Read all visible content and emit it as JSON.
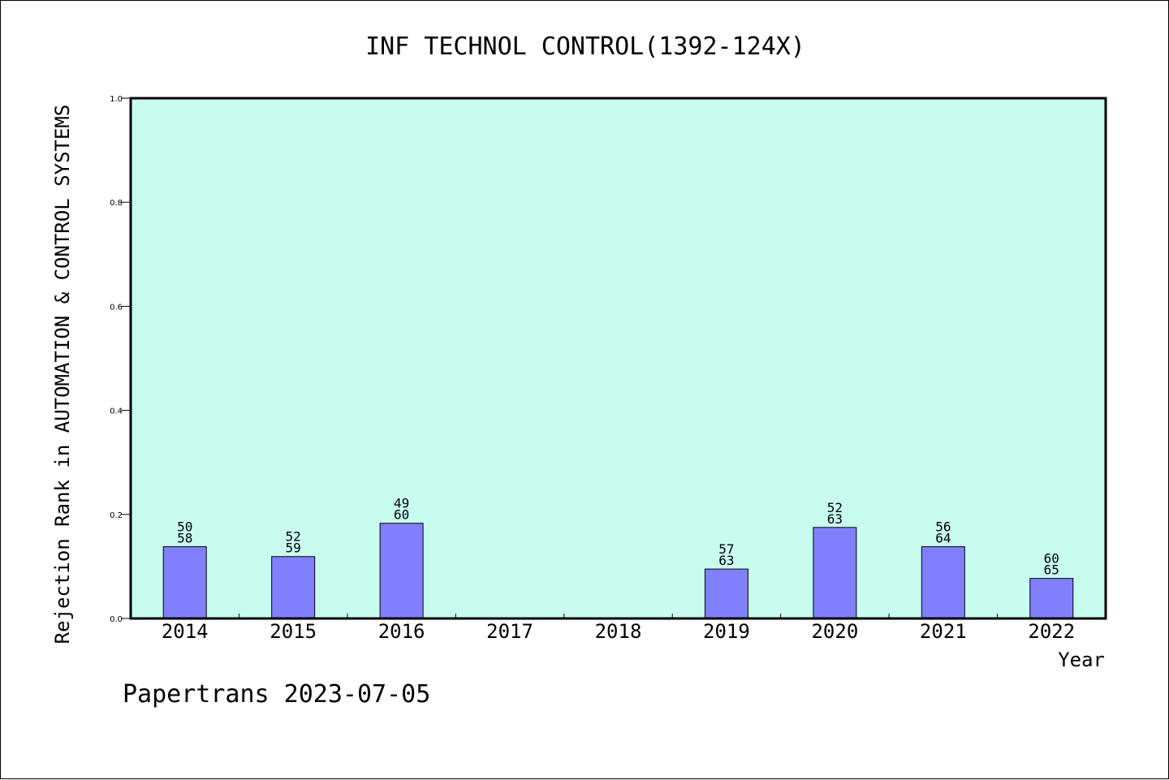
{
  "chart_data": {
    "type": "bar",
    "title": "INF TECHNOL CONTROL(1392-124X)",
    "xlabel": "Year",
    "ylabel": "Rejection Rank in AUTOMATION & CONTROL SYSTEMS",
    "ylim": [
      0,
      1.0
    ],
    "yticks": [
      "0.0",
      "0.2",
      "0.4",
      "0.6",
      "0.8",
      "1.0"
    ],
    "categories": [
      "2014",
      "2015",
      "2016",
      "2017",
      "2018",
      "2019",
      "2020",
      "2021",
      "2022"
    ],
    "values": [
      0.138,
      0.119,
      0.183,
      null,
      null,
      0.095,
      0.175,
      0.138,
      0.077
    ],
    "bar_labels": [
      [
        "50",
        "58"
      ],
      [
        "52",
        "59"
      ],
      [
        "49",
        "60"
      ],
      null,
      null,
      [
        "57",
        "63"
      ],
      [
        "52",
        "63"
      ],
      [
        "56",
        "64"
      ],
      [
        "60",
        "65"
      ]
    ],
    "grid": false,
    "plot_background": "#c8fcef",
    "bar_color": "#8080ff"
  },
  "footer": {
    "text": "Papertrans 2023-07-05"
  }
}
